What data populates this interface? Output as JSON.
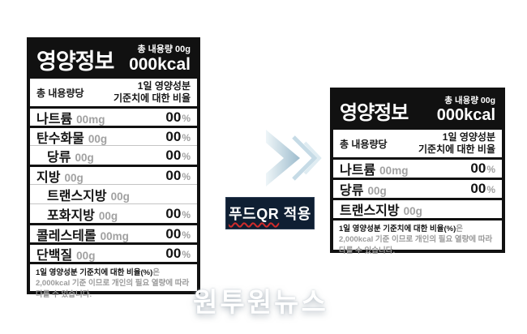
{
  "colors": {
    "label-ink": "#111111",
    "muted-gray": "#a1a1a1",
    "badge-navy": "#0f1f33",
    "underline-red": "#cf2b2b",
    "arrow-blue": "#9dbccd",
    "watermark-white": "#ffffff"
  },
  "left_label": {
    "title": "영양정보",
    "total_amount": "총 내용량 00g",
    "kcal": "000kcal",
    "per_serving": "총 내용량당",
    "daily_ref": [
      "1일 영양성분",
      "기준치에 대한 비율"
    ],
    "rows": [
      {
        "name": "나트륨",
        "amount": "00mg",
        "percent": "00",
        "unit": "%",
        "indent": false,
        "sep": "thick"
      },
      {
        "name": "탄수화물",
        "amount": "00g",
        "percent": "00",
        "unit": "%",
        "indent": false,
        "sep": "thick"
      },
      {
        "name": "당류",
        "amount": "00g",
        "percent": "00",
        "unit": "%",
        "indent": true,
        "sep": "thin"
      },
      {
        "name": "지방",
        "amount": "00g",
        "percent": "00",
        "unit": "%",
        "indent": false,
        "sep": "thick"
      },
      {
        "name": "트랜스지방",
        "amount": "00g",
        "percent": "",
        "unit": "",
        "indent": true,
        "sep": "thin"
      },
      {
        "name": "포화지방",
        "amount": "00g",
        "percent": "00",
        "unit": "%",
        "indent": true,
        "sep": "thin"
      },
      {
        "name": "콜레스테롤",
        "amount": "00mg",
        "percent": "00",
        "unit": "%",
        "indent": false,
        "sep": "thick"
      },
      {
        "name": "단백질",
        "amount": "00g",
        "percent": "00",
        "unit": "%",
        "indent": false,
        "sep": "thick"
      }
    ],
    "footnote_bold": "1일 영양성분 기준치에 대한 비율(%)",
    "footnote_rest": "은 2,000kcal 기준 이므로 개인의 필요 열량에 따라 다를 수 있습니다."
  },
  "right_label": {
    "title": "영양정보",
    "total_amount": "총 내용량 00g",
    "kcal": "000kcal",
    "per_serving": "총 내용량당",
    "daily_ref": [
      "1일 영양성분",
      "기준치에 대한 비율"
    ],
    "rows": [
      {
        "name": "나트륨",
        "amount": "00mg",
        "percent": "00",
        "unit": "%",
        "indent": false,
        "sep": "thick"
      },
      {
        "name": "당류",
        "amount": "00g",
        "percent": "00",
        "unit": "%",
        "indent": false,
        "sep": "thick"
      },
      {
        "name": "트랜스지방",
        "amount": "00g",
        "percent": "",
        "unit": "",
        "indent": false,
        "sep": "thick"
      }
    ],
    "footnote_bold": "1일 영양성분 기준치에 대한 비율(%)",
    "footnote_rest": "은 2,000kcal 기준 이므로 개인의 필요 열량에 따라 다를 수 있습니다."
  },
  "badge": {
    "underlined": "푸드QR",
    "rest": " 적용"
  },
  "watermark": "원투원뉴스",
  "icons": {
    "arrow": "chevron-right-icon"
  }
}
